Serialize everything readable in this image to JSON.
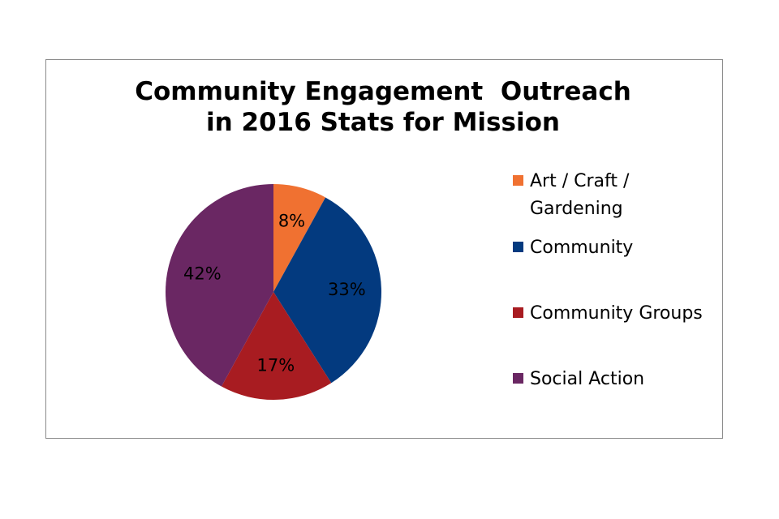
{
  "chart_data": {
    "type": "pie",
    "title": [
      "Community Engagement  Outreach",
      "in 2016 Stats for Mission"
    ],
    "slices": [
      {
        "name": "Art / Craft / Gardening",
        "label_lines": [
          "Art / Craft /",
          "Gardening"
        ],
        "value": 8,
        "label": "8%",
        "color": "#f07131"
      },
      {
        "name": "Community",
        "label_lines": [
          "Community"
        ],
        "value": 33,
        "label": "33%",
        "color": "#033a7f"
      },
      {
        "name": "Community Groups",
        "label_lines": [
          "Community Groups"
        ],
        "value": 17,
        "label": "17%",
        "color": "#a81c21"
      },
      {
        "name": "Social Action",
        "label_lines": [
          "Social Action"
        ],
        "value": 42,
        "label": "42%",
        "color": "#6a2763"
      }
    ],
    "legend_position": "right"
  }
}
